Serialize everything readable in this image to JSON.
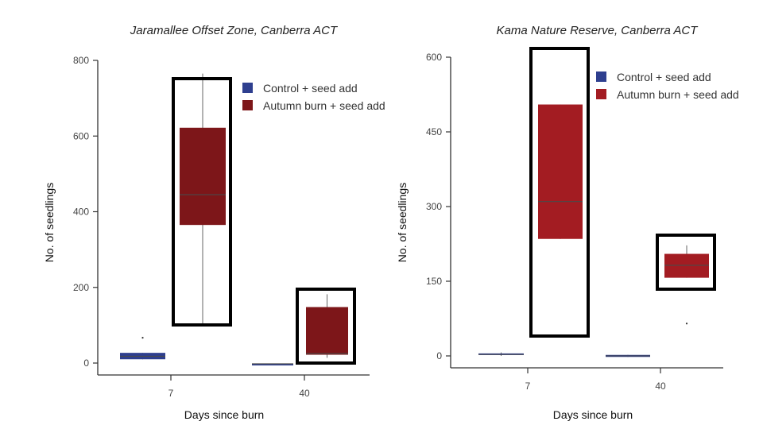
{
  "chart_data": [
    {
      "type": "box",
      "title": "Jaramallee Offset Zone, Canberra ACT",
      "xlabel": "Days since burn",
      "ylabel": "No. of seedlings",
      "ylim": [
        0,
        800
      ],
      "yticks": [
        "0",
        "200",
        "400",
        "600",
        "800"
      ],
      "categories": [
        "7",
        "40"
      ],
      "legend": [
        "Control + seed add",
        "Autumn burn + seed add"
      ],
      "colors": {
        "control": "#2e3f8f",
        "burn": "#7d1619"
      },
      "series": [
        {
          "name": "Control + seed add",
          "boxes": [
            {
              "q1": 10,
              "median": 18,
              "q3": 27,
              "whisker_low": 10,
              "whisker_high": 27,
              "outliers": [
                67
              ]
            },
            {
              "q1": -2,
              "median": -2,
              "q3": -2,
              "whisker_low": -2,
              "whisker_high": -2,
              "outliers": []
            }
          ]
        },
        {
          "name": "Autumn burn + seed add",
          "boxes": [
            {
              "q1": 365,
              "median": 445,
              "q3": 622,
              "whisker_low": 105,
              "whisker_high": 765,
              "outliers": []
            },
            {
              "q1": 22,
              "median": 25,
              "q3": 148,
              "whisker_low": 14,
              "whisker_high": 182,
              "outliers": []
            }
          ]
        }
      ]
    },
    {
      "type": "box",
      "title": "Kama Nature Reserve, Canberra ACT",
      "xlabel": "Days since burn",
      "ylabel": "No. of seedlings",
      "ylim": [
        0,
        600
      ],
      "yticks": [
        "0",
        "150",
        "300",
        "450",
        "600"
      ],
      "categories": [
        "7",
        "40"
      ],
      "legend": [
        "Control + seed add",
        "Autumn burn + seed add"
      ],
      "colors": {
        "control": "#2e3f8f",
        "burn": "#a31c22"
      },
      "series": [
        {
          "name": "Control + seed add",
          "boxes": [
            {
              "q1": 2,
              "median": 3,
              "q3": 5,
              "whisker_low": 0,
              "whisker_high": 7,
              "outliers": []
            },
            {
              "q1": -2,
              "median": 0,
              "q3": 2,
              "whisker_low": -2,
              "whisker_high": 2,
              "outliers": []
            }
          ]
        },
        {
          "name": "Autumn burn + seed add",
          "boxes": [
            {
              "q1": 235,
              "median": 310,
              "q3": 505,
              "whisker_low": 235,
              "whisker_high": 505,
              "outliers": []
            },
            {
              "q1": 157,
              "median": 182,
              "q3": 205,
              "whisker_low": 157,
              "whisker_high": 222,
              "outliers": [
                65
              ]
            }
          ]
        }
      ]
    }
  ]
}
